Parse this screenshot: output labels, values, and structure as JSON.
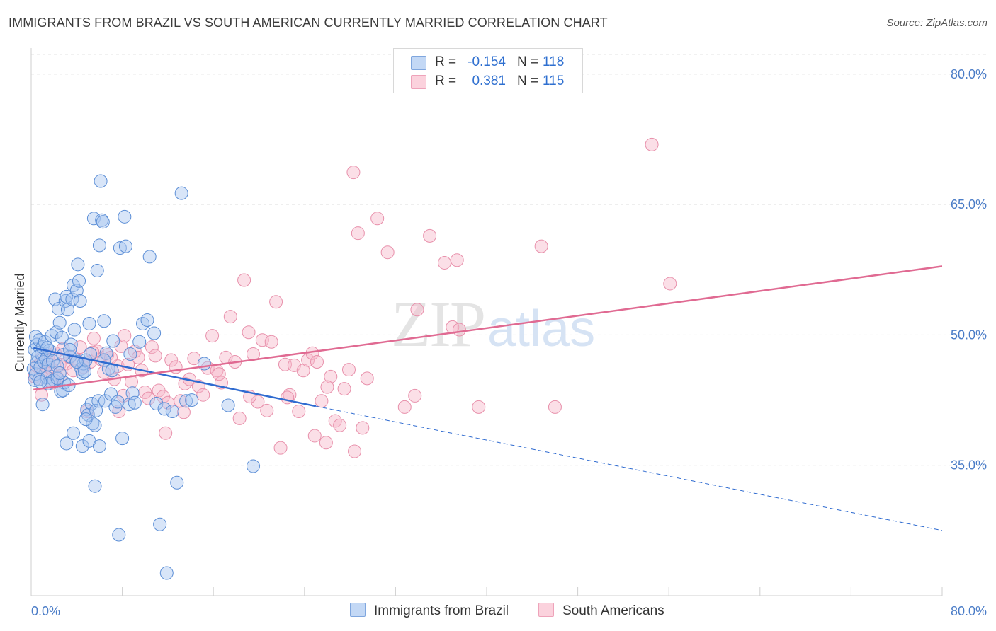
{
  "header": {
    "title": "IMMIGRANTS FROM BRAZIL VS SOUTH AMERICAN CURRENTLY MARRIED CORRELATION CHART",
    "source": "Source: ZipAtlas.com"
  },
  "watermark": {
    "zip": "ZIP",
    "atlas": "atlas"
  },
  "legend": {
    "rows": [
      {
        "r_label": "R =",
        "r_value": "-0.154",
        "n_label": "N =",
        "n_value": "118",
        "color": "#a9c6f0"
      },
      {
        "r_label": "R =",
        "r_value": "0.381",
        "n_label": "N =",
        "n_value": "115",
        "color": "#f6b8c9"
      }
    ]
  },
  "bottom_legend": {
    "series1": "Immigrants from Brazil",
    "series2": "South Americans"
  },
  "colors": {
    "blue_fill": "#a9c6f0",
    "blue_stroke": "#5b8ed6",
    "blue_line": "#2f6bd0",
    "pink_fill": "#f6b8c9",
    "pink_stroke": "#e890ab",
    "pink_line": "#e06a92",
    "tick_text": "#4a7cc7"
  },
  "chart_data": {
    "type": "scatter",
    "title": "IMMIGRANTS FROM BRAZIL VS SOUTH AMERICAN CURRENTLY MARRIED CORRELATION CHART",
    "xlabel": "",
    "ylabel": "Currently Married",
    "xlim": [
      0,
      80
    ],
    "ylim": [
      20,
      83
    ],
    "x_tick_labels": [
      "0.0%",
      "80.0%"
    ],
    "y_ticks": [
      35,
      50,
      65,
      80
    ],
    "y_tick_labels": [
      "35.0%",
      "50.0%",
      "65.0%",
      "80.0%"
    ],
    "grid": true,
    "series": [
      {
        "name": "Immigrants from Brazil",
        "R": -0.154,
        "N": 118,
        "trend": {
          "x0": 0.2,
          "y0": 48.5,
          "x1": 25,
          "y1": 41.8,
          "dashed_to_x": 80,
          "dashed_to_y": 27.5
        },
        "points": [
          [
            0.2,
            46.1
          ],
          [
            0.3,
            44.8
          ],
          [
            0.3,
            48.3
          ],
          [
            0.4,
            45.5
          ],
          [
            0.4,
            49.8
          ],
          [
            0.5,
            46.8
          ],
          [
            0.5,
            48.9
          ],
          [
            0.6,
            47.5
          ],
          [
            0.7,
            44.9
          ],
          [
            0.7,
            49.4
          ],
          [
            0.8,
            46.3
          ],
          [
            0.9,
            47.8
          ],
          [
            1.0,
            42.0
          ],
          [
            1.0,
            48.6
          ],
          [
            1.1,
            46.9
          ],
          [
            1.2,
            49.2
          ],
          [
            1.3,
            47.2
          ],
          [
            1.4,
            45.1
          ],
          [
            1.5,
            46.6
          ],
          [
            1.6,
            48.2
          ],
          [
            1.7,
            44.6
          ],
          [
            1.8,
            49.9
          ],
          [
            1.9,
            47.0
          ],
          [
            2.0,
            44.8
          ],
          [
            2.1,
            54.1
          ],
          [
            2.2,
            50.3
          ],
          [
            2.3,
            46.4
          ],
          [
            2.4,
            53.0
          ],
          [
            2.5,
            51.4
          ],
          [
            2.6,
            43.5
          ],
          [
            2.7,
            49.7
          ],
          [
            2.8,
            43.6
          ],
          [
            2.9,
            44.5
          ],
          [
            3.0,
            53.9
          ],
          [
            3.1,
            54.4
          ],
          [
            3.2,
            52.9
          ],
          [
            3.3,
            44.2
          ],
          [
            3.4,
            47.5
          ],
          [
            3.5,
            48.9
          ],
          [
            3.6,
            54.1
          ],
          [
            3.7,
            55.7
          ],
          [
            3.8,
            50.6
          ],
          [
            3.9,
            47.1
          ],
          [
            4.0,
            55.1
          ],
          [
            4.1,
            58.1
          ],
          [
            4.2,
            56.2
          ],
          [
            4.3,
            53.9
          ],
          [
            4.4,
            46.1
          ],
          [
            4.5,
            45.6
          ],
          [
            4.6,
            46.7
          ],
          [
            4.7,
            45.8
          ],
          [
            4.8,
            47.1
          ],
          [
            4.9,
            41.4
          ],
          [
            5.0,
            40.8
          ],
          [
            5.1,
            51.3
          ],
          [
            5.2,
            47.8
          ],
          [
            5.3,
            42.1
          ],
          [
            5.4,
            39.8
          ],
          [
            5.5,
            63.4
          ],
          [
            5.6,
            39.6
          ],
          [
            5.7,
            41.3
          ],
          [
            5.8,
            57.4
          ],
          [
            5.9,
            42.4
          ],
          [
            6.0,
            60.3
          ],
          [
            6.1,
            67.7
          ],
          [
            6.2,
            63.2
          ],
          [
            6.3,
            63.0
          ],
          [
            6.4,
            51.6
          ],
          [
            6.5,
            42.4
          ],
          [
            6.6,
            47.9
          ],
          [
            6.8,
            46.1
          ],
          [
            7.0,
            43.2
          ],
          [
            7.2,
            49.3
          ],
          [
            7.4,
            41.7
          ],
          [
            7.6,
            42.3
          ],
          [
            7.8,
            60.0
          ],
          [
            8.0,
            38.1
          ],
          [
            8.2,
            63.6
          ],
          [
            8.3,
            60.2
          ],
          [
            8.6,
            42.0
          ],
          [
            8.9,
            43.3
          ],
          [
            9.1,
            42.2
          ],
          [
            9.5,
            49.2
          ],
          [
            9.8,
            51.3
          ],
          [
            10.2,
            51.7
          ],
          [
            10.4,
            59.0
          ],
          [
            10.8,
            50.2
          ],
          [
            11.0,
            42.1
          ],
          [
            11.3,
            28.2
          ],
          [
            11.7,
            41.5
          ],
          [
            11.9,
            22.6
          ],
          [
            12.4,
            41.2
          ],
          [
            12.8,
            33.0
          ],
          [
            13.2,
            66.3
          ],
          [
            13.6,
            42.4
          ],
          [
            14.1,
            42.5
          ],
          [
            15.2,
            46.7
          ],
          [
            17.3,
            41.9
          ],
          [
            19.5,
            34.9
          ],
          [
            1.5,
            44.4
          ],
          [
            2.3,
            45.0
          ],
          [
            3.7,
            38.7
          ],
          [
            4.5,
            37.2
          ],
          [
            5.1,
            37.8
          ],
          [
            5.6,
            32.6
          ],
          [
            6.0,
            37.2
          ],
          [
            7.7,
            27.0
          ],
          [
            0.8,
            44.6
          ],
          [
            1.4,
            48.5
          ],
          [
            2.8,
            47.7
          ],
          [
            3.4,
            48.3
          ],
          [
            4.0,
            46.9
          ],
          [
            6.4,
            47.1
          ],
          [
            7.1,
            45.9
          ],
          [
            8.7,
            47.8
          ],
          [
            3.1,
            37.5
          ],
          [
            4.8,
            40.3
          ],
          [
            2.5,
            45.6
          ]
        ]
      },
      {
        "name": "South Americans",
        "R": 0.381,
        "N": 115,
        "trend": {
          "x0": 0.2,
          "y0": 43.7,
          "x1": 80,
          "y1": 57.9
        },
        "points": [
          [
            0.3,
            45.2
          ],
          [
            0.5,
            46.4
          ],
          [
            0.7,
            44.9
          ],
          [
            0.9,
            47.3
          ],
          [
            1.1,
            46.0
          ],
          [
            1.3,
            45.6
          ],
          [
            1.5,
            47.6
          ],
          [
            1.7,
            46.2
          ],
          [
            1.9,
            44.5
          ],
          [
            2.1,
            47.9
          ],
          [
            2.3,
            45.1
          ],
          [
            2.5,
            46.6
          ],
          [
            2.8,
            48.4
          ],
          [
            3.1,
            46.7
          ],
          [
            3.4,
            47.4
          ],
          [
            3.7,
            45.9
          ],
          [
            4.0,
            47.1
          ],
          [
            4.3,
            48.6
          ],
          [
            4.6,
            46.3
          ],
          [
            4.9,
            41.2
          ],
          [
            5.2,
            46.9
          ],
          [
            5.5,
            49.6
          ],
          [
            5.8,
            48.1
          ],
          [
            6.1,
            47.2
          ],
          [
            6.4,
            45.7
          ],
          [
            6.7,
            47.7
          ],
          [
            7.0,
            47.4
          ],
          [
            7.3,
            44.9
          ],
          [
            7.6,
            46.4
          ],
          [
            7.9,
            48.7
          ],
          [
            8.2,
            49.9
          ],
          [
            8.5,
            46.6
          ],
          [
            8.8,
            44.6
          ],
          [
            9.1,
            48.1
          ],
          [
            9.4,
            47.4
          ],
          [
            9.7,
            45.9
          ],
          [
            10.0,
            43.4
          ],
          [
            10.3,
            42.7
          ],
          [
            10.6,
            48.6
          ],
          [
            10.9,
            47.6
          ],
          [
            11.2,
            43.6
          ],
          [
            11.6,
            42.9
          ],
          [
            12.0,
            42.2
          ],
          [
            12.3,
            47.1
          ],
          [
            12.7,
            46.3
          ],
          [
            13.1,
            42.4
          ],
          [
            13.5,
            44.4
          ],
          [
            13.9,
            44.9
          ],
          [
            14.3,
            47.3
          ],
          [
            14.7,
            44.1
          ],
          [
            15.1,
            43.1
          ],
          [
            15.5,
            46.2
          ],
          [
            15.9,
            49.9
          ],
          [
            16.3,
            45.9
          ],
          [
            16.7,
            44.5
          ],
          [
            17.1,
            47.4
          ],
          [
            17.5,
            52.1
          ],
          [
            17.9,
            46.9
          ],
          [
            18.3,
            40.4
          ],
          [
            18.7,
            56.3
          ],
          [
            19.1,
            50.3
          ],
          [
            19.5,
            47.8
          ],
          [
            19.9,
            42.3
          ],
          [
            20.3,
            49.4
          ],
          [
            20.7,
            41.3
          ],
          [
            21.1,
            49.2
          ],
          [
            21.5,
            53.8
          ],
          [
            21.9,
            37.0
          ],
          [
            22.3,
            46.6
          ],
          [
            22.7,
            43.1
          ],
          [
            23.1,
            46.5
          ],
          [
            23.5,
            41.2
          ],
          [
            23.9,
            45.9
          ],
          [
            24.3,
            47.1
          ],
          [
            24.7,
            47.9
          ],
          [
            25.1,
            46.9
          ],
          [
            25.5,
            42.4
          ],
          [
            25.9,
            37.6
          ],
          [
            26.3,
            45.2
          ],
          [
            26.7,
            40.1
          ],
          [
            27.1,
            39.6
          ],
          [
            27.5,
            43.8
          ],
          [
            27.9,
            46.0
          ],
          [
            28.3,
            68.7
          ],
          [
            28.7,
            61.7
          ],
          [
            29.1,
            39.3
          ],
          [
            29.5,
            45.0
          ],
          [
            30.4,
            63.4
          ],
          [
            31.3,
            59.5
          ],
          [
            32.8,
            41.7
          ],
          [
            33.7,
            43.0
          ],
          [
            33.9,
            52.9
          ],
          [
            35.0,
            61.4
          ],
          [
            36.3,
            58.3
          ],
          [
            37.0,
            50.9
          ],
          [
            37.4,
            58.6
          ],
          [
            37.6,
            50.6
          ],
          [
            39.3,
            41.7
          ],
          [
            44.8,
            60.2
          ],
          [
            46.0,
            41.7
          ],
          [
            54.5,
            71.9
          ],
          [
            56.1,
            55.9
          ],
          [
            0.9,
            43.1
          ],
          [
            2.6,
            45.3
          ],
          [
            5.4,
            48.0
          ],
          [
            8.1,
            43.0
          ],
          [
            11.8,
            38.7
          ],
          [
            13.4,
            41.1
          ],
          [
            16.5,
            45.5
          ],
          [
            19.2,
            42.9
          ],
          [
            22.5,
            42.8
          ],
          [
            24.9,
            38.4
          ],
          [
            26.0,
            44.0
          ],
          [
            28.4,
            36.6
          ],
          [
            7.7,
            41.2
          ]
        ]
      }
    ]
  }
}
